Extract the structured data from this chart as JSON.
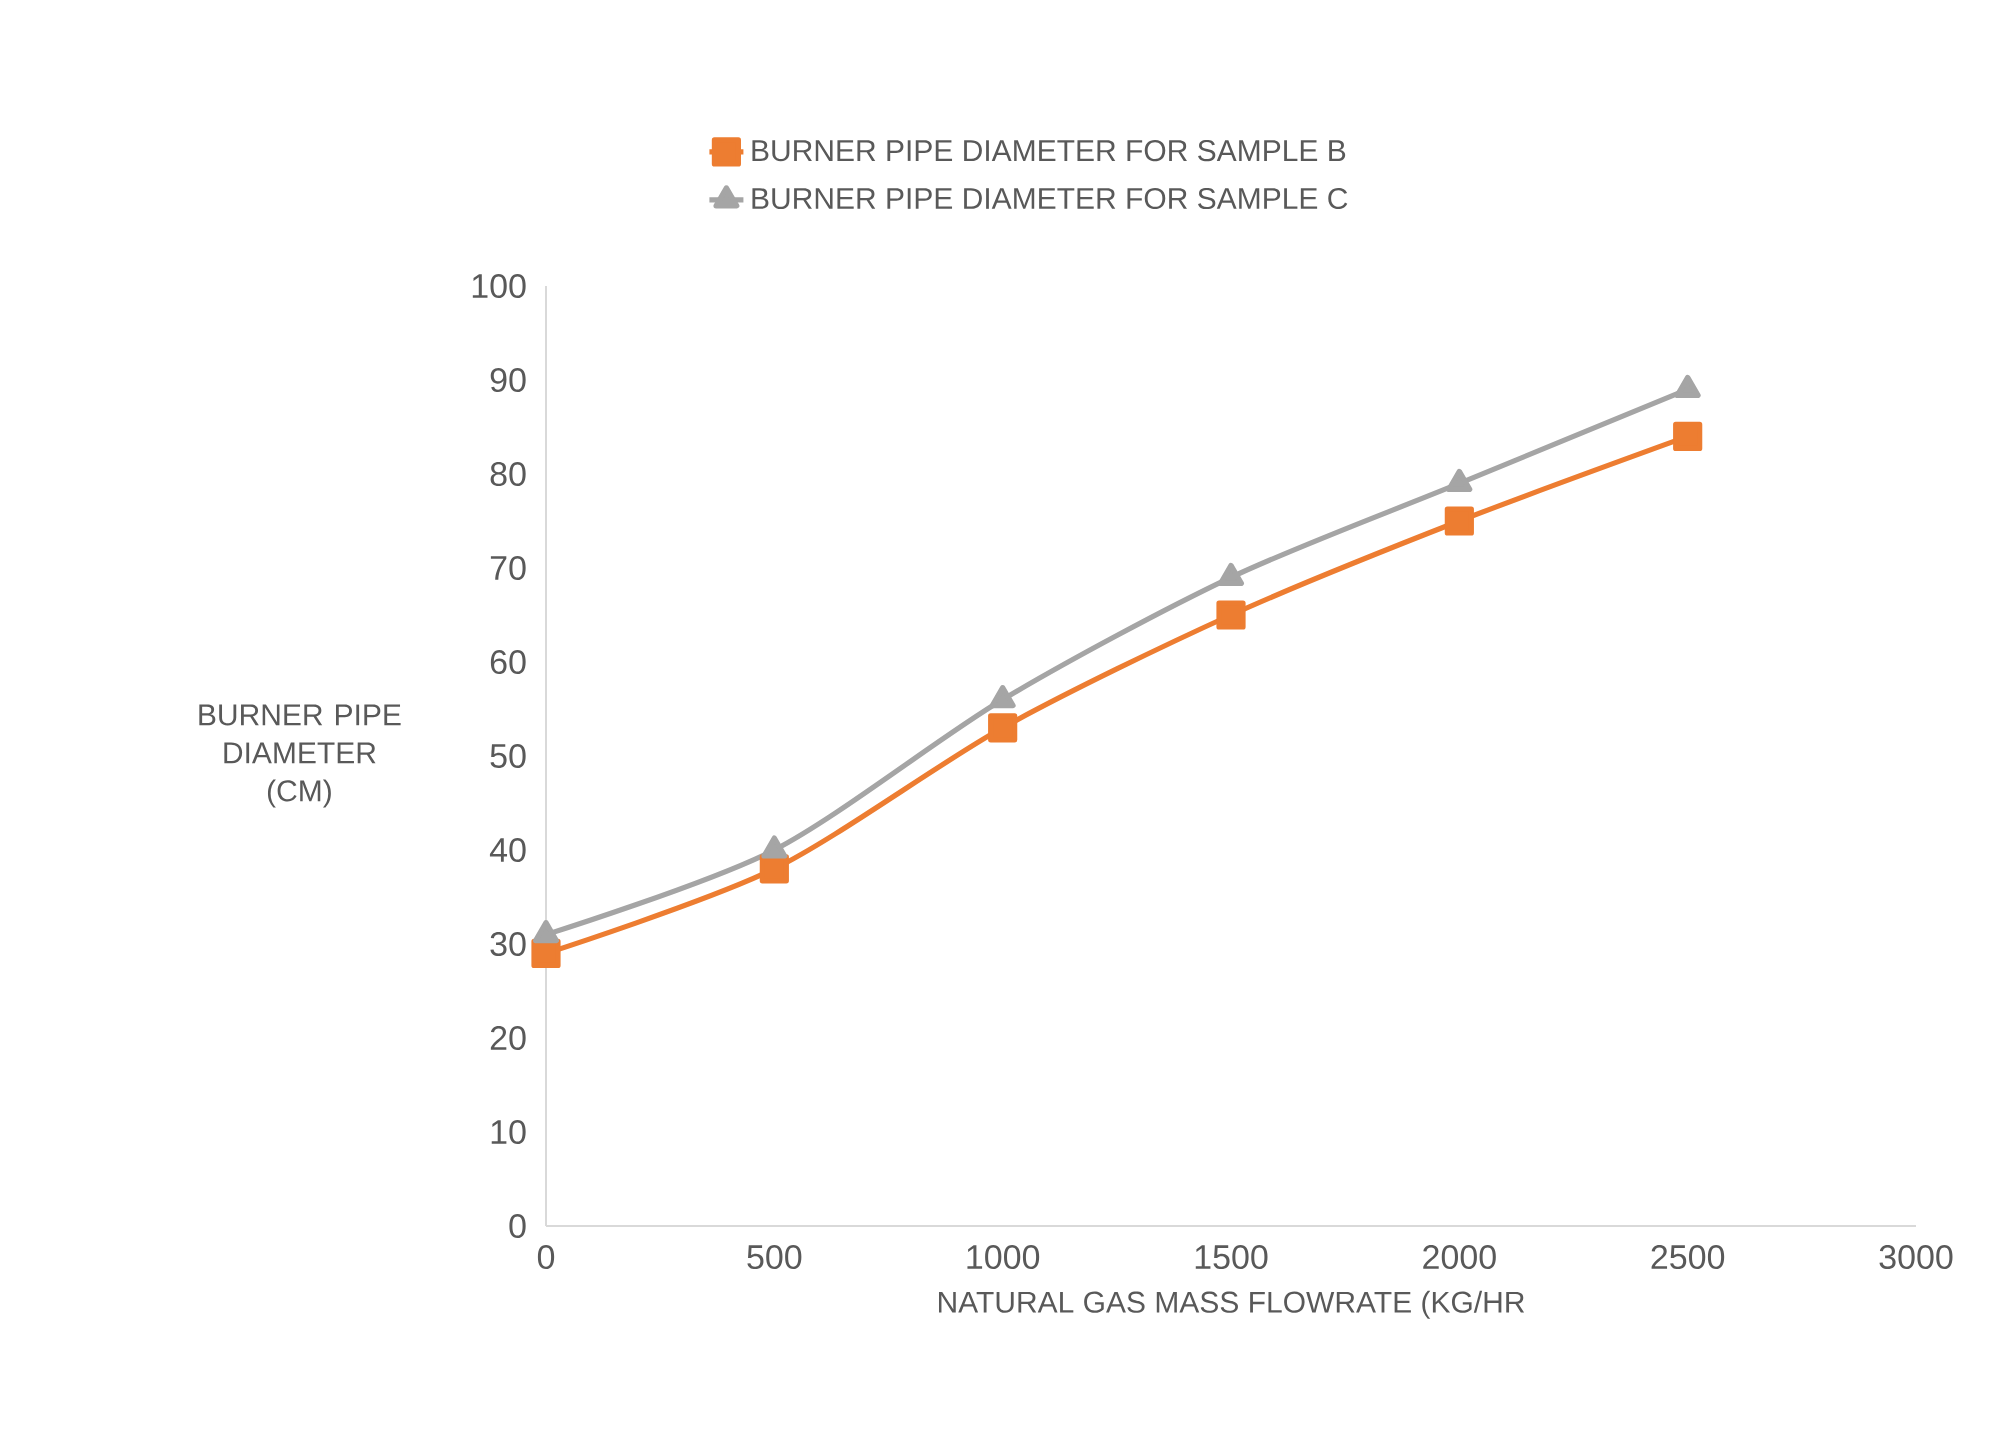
{
  "chart_data": {
    "type": "line",
    "xlabel": "NATURAL GAS MASS FLOWRATE (KG/HR",
    "ylabel": "BURNER PIPE DIAMETER (CM)",
    "x": [
      0,
      500,
      1000,
      1500,
      2000,
      2500
    ],
    "series": [
      {
        "name": "BURNER PIPE DIAMETER FOR SAMPLE B",
        "color": "#ed7d31",
        "marker": "square",
        "values": [
          29,
          38,
          53,
          65,
          75,
          84
        ]
      },
      {
        "name": "BURNER PIPE DIAMETER FOR SAMPLE C",
        "color": "#a5a5a5",
        "marker": "triangle",
        "values": [
          31,
          40,
          56,
          69,
          79,
          89
        ]
      }
    ],
    "xlim": [
      0,
      3000
    ],
    "xticks": [
      0,
      500,
      1000,
      1500,
      2000,
      2500,
      3000
    ],
    "ylim": [
      0,
      100
    ],
    "yticks": [
      0,
      10,
      20,
      30,
      40,
      50,
      60,
      70,
      80,
      90,
      100
    ],
    "grid": false,
    "legend": "top",
    "line_style": "solid"
  }
}
